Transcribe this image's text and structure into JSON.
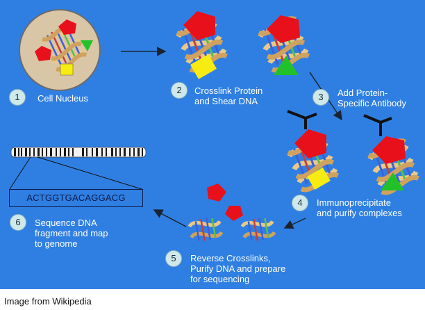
{
  "steps": [
    {
      "num": "1",
      "lines": [
        "Cell Nucleus"
      ]
    },
    {
      "num": "2",
      "lines": [
        "Crosslink Protein",
        "and Shear DNA"
      ]
    },
    {
      "num": "3",
      "lines": [
        "Add Protein-",
        "Specific Antibody"
      ]
    },
    {
      "num": "4",
      "lines": [
        "Immunoprecipitate",
        "and purify complexes"
      ]
    },
    {
      "num": "5",
      "lines": [
        "Reverse Crosslinks,",
        "Purify DNA and prepare",
        "for sequencing"
      ]
    },
    {
      "num": "6",
      "lines": [
        "Sequence DNA",
        "fragment and map",
        "to genome"
      ]
    }
  ],
  "sequence": "ACTGGTGACAGGACG",
  "caption": "Image from Wikipedia",
  "colors": {
    "background": "#2f7fe2",
    "protein_red": "#e8101a",
    "protein_yellow": "#f6ec12",
    "protein_green": "#22c12a",
    "dna_backbone": "#e8c98a",
    "antibody": "#111111",
    "nucleus": "#d8c6a6"
  },
  "icons": [
    "cell-nucleus-icon",
    "dna-helix-icon",
    "protein-icon",
    "antibody-icon",
    "chromosome-icon",
    "arrow-icon"
  ]
}
